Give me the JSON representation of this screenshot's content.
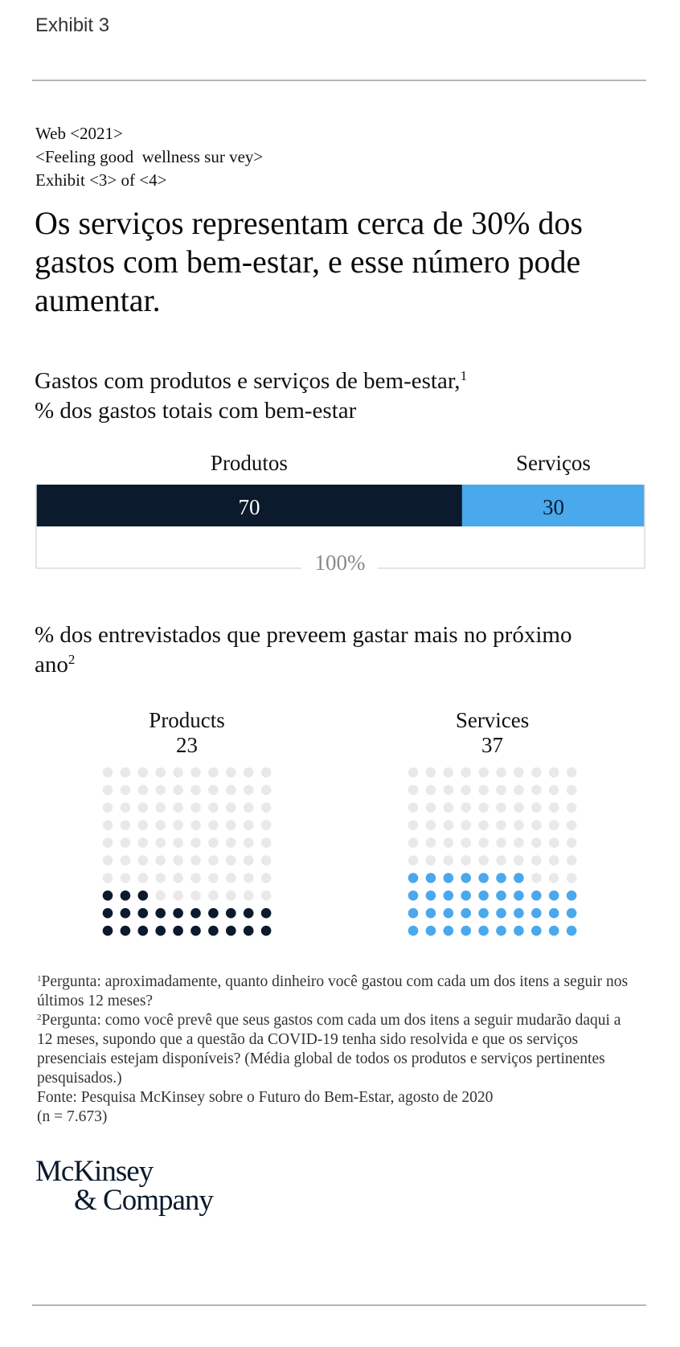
{
  "exhibit_label": "Exhibit 3",
  "meta": {
    "line1": "Web <2021>",
    "line2": "<Feeling good  wellness sur vey>",
    "line3": "Exhibit <3> of <4>"
  },
  "headline": "Os serviços representam cerca de 30% dos gastos com bem-estar, e esse número pode aumentar.",
  "chart1_title": {
    "line1": "Gastos com produtos e serviços de bem-estar,",
    "line1_sup": "1",
    "line2": "% dos gastos totais com bem-estar"
  },
  "chart2_title": {
    "text": "% dos entrevistados que preveem gastar mais no próximo ano",
    "sup": "2"
  },
  "colors": {
    "products": "#0b1a2c",
    "services": "#4aa8ec",
    "empty_dot": "#e9e9e9",
    "total_label": "#888888"
  },
  "chart_data": [
    {
      "type": "bar",
      "orientation": "horizontal-stacked",
      "categories": [
        "Produtos",
        "Serviços"
      ],
      "values": [
        70,
        30
      ],
      "total_label": "100%"
    },
    {
      "type": "waffle",
      "grid": [
        10,
        10
      ],
      "series": [
        {
          "name": "Products",
          "value": 23
        },
        {
          "name": "Services",
          "value": 37
        }
      ]
    }
  ],
  "footnotes": {
    "fn1_marker": "1",
    "fn1_text": "Pergunta: aproximadamente, quanto dinheiro você gastou com cada um dos itens a seguir nos últimos 12 meses?",
    "fn2_marker": "2",
    "fn2_text": "Pergunta: como você prevê que seus gastos com cada um dos itens a seguir mudarão daqui a 12 meses, supondo que a questão da COVID-19 tenha sido resolvida e que os serviços presenciais estejam disponíveis? (Média global de todos os produtos e serviços pertinentes pesquisados.)",
    "source": "Fonte: Pesquisa McKinsey sobre o Futuro do Bem-Estar, agosto de 2020",
    "n": "(n = 7.673)"
  },
  "logo": {
    "line1": "McKinsey",
    "line2": "& Company"
  }
}
